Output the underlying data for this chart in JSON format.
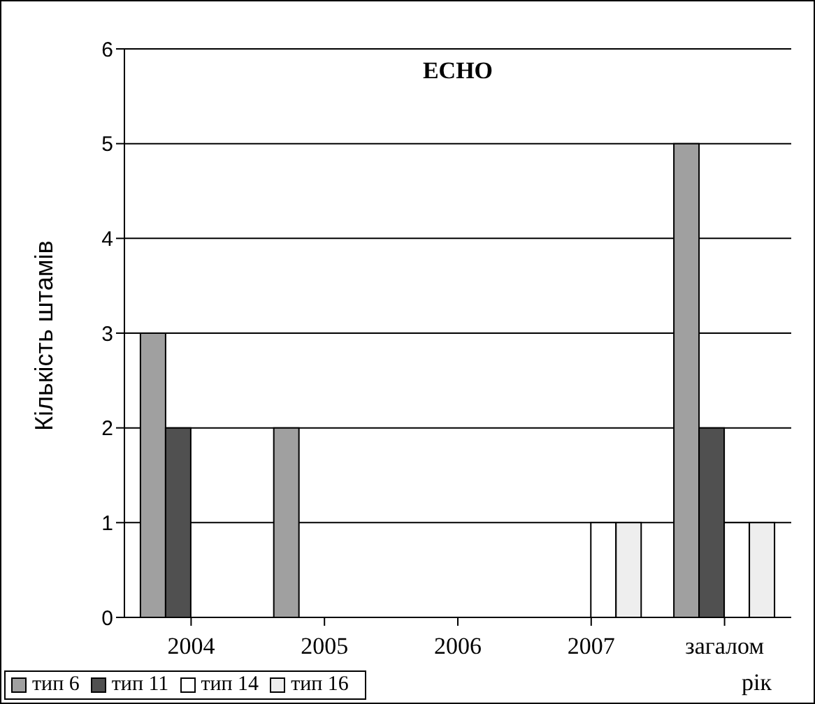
{
  "chart_data": {
    "type": "bar",
    "title": "ECHO",
    "xlabel": "рік",
    "ylabel": "Кількість штамів",
    "categories": [
      "2004",
      "2005",
      "2006",
      "2007",
      "загалом"
    ],
    "series": [
      {
        "name": "тип 6",
        "color": "#a0a0a0",
        "values": [
          3,
          2,
          0,
          0,
          5
        ]
      },
      {
        "name": "тип 11",
        "color": "#505050",
        "values": [
          2,
          0,
          0,
          0,
          2
        ]
      },
      {
        "name": "тип 14",
        "color": "#ffffff",
        "values": [
          0,
          0,
          0,
          1,
          1
        ]
      },
      {
        "name": "тип 16",
        "color": "#eeeeee",
        "values": [
          0,
          0,
          0,
          1,
          1
        ]
      }
    ],
    "ylim": [
      0,
      6
    ],
    "yticks": [
      0,
      1,
      2,
      3,
      4,
      5,
      6
    ],
    "grid": "y",
    "legend": "bottom left"
  }
}
